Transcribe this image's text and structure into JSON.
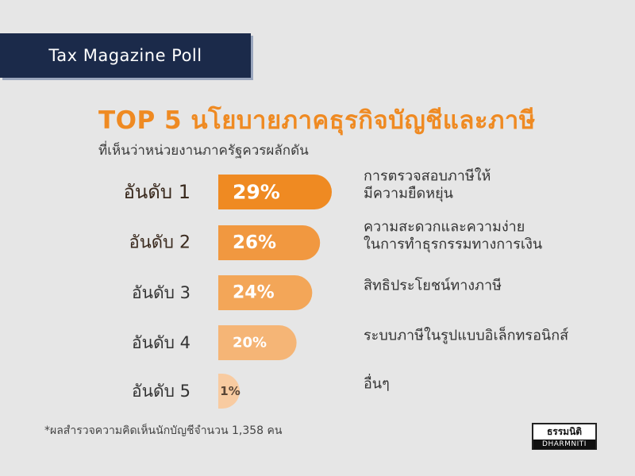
{
  "header": {
    "text": "Tax Magazine Poll"
  },
  "colors": {
    "banner": "#1b2a4a",
    "title": "#ef8a22",
    "bars": [
      "#ef8a22",
      "#f19840",
      "#f3a658",
      "#f5b576",
      "#f8cba1"
    ]
  },
  "chart_data": {
    "type": "bar",
    "orientation": "horizontal",
    "title": "TOP 5 นโยบายภาคธุรกิจบัญชีและภาษี",
    "subtitle": "ที่เห็นว่าหน่วยงานภาครัฐควรผลักดัน",
    "ranks": [
      "อันดับ 1",
      "อันดับ 2",
      "อันดับ 3",
      "อันดับ 4",
      "อันดับ 5"
    ],
    "values": [
      29,
      26,
      24,
      20,
      1
    ],
    "value_labels": [
      "29%",
      "26%",
      "24%",
      "20%",
      "1%"
    ],
    "descriptions": [
      [
        "การตรวจสอบภาษีให้",
        "มีความยืดหยุ่น"
      ],
      [
        "ความสะดวกและความง่าย",
        "ในการทำธุรกรรมทางการเงิน"
      ],
      [
        "สิทธิประโยชน์ทางภาษี"
      ],
      [
        "ระบบภาษีในรูปแบบอิเล็กทรอนิกส์"
      ],
      [
        "อื่นๆ"
      ]
    ],
    "ylim": [
      0,
      29
    ]
  },
  "footnote": "*ผลสำรวจความคิดเห็นนักบัญชีจำนวน 1,358 คน",
  "logo": {
    "top": "ธรรมนิติ",
    "bottom": "DHARMNITI"
  }
}
